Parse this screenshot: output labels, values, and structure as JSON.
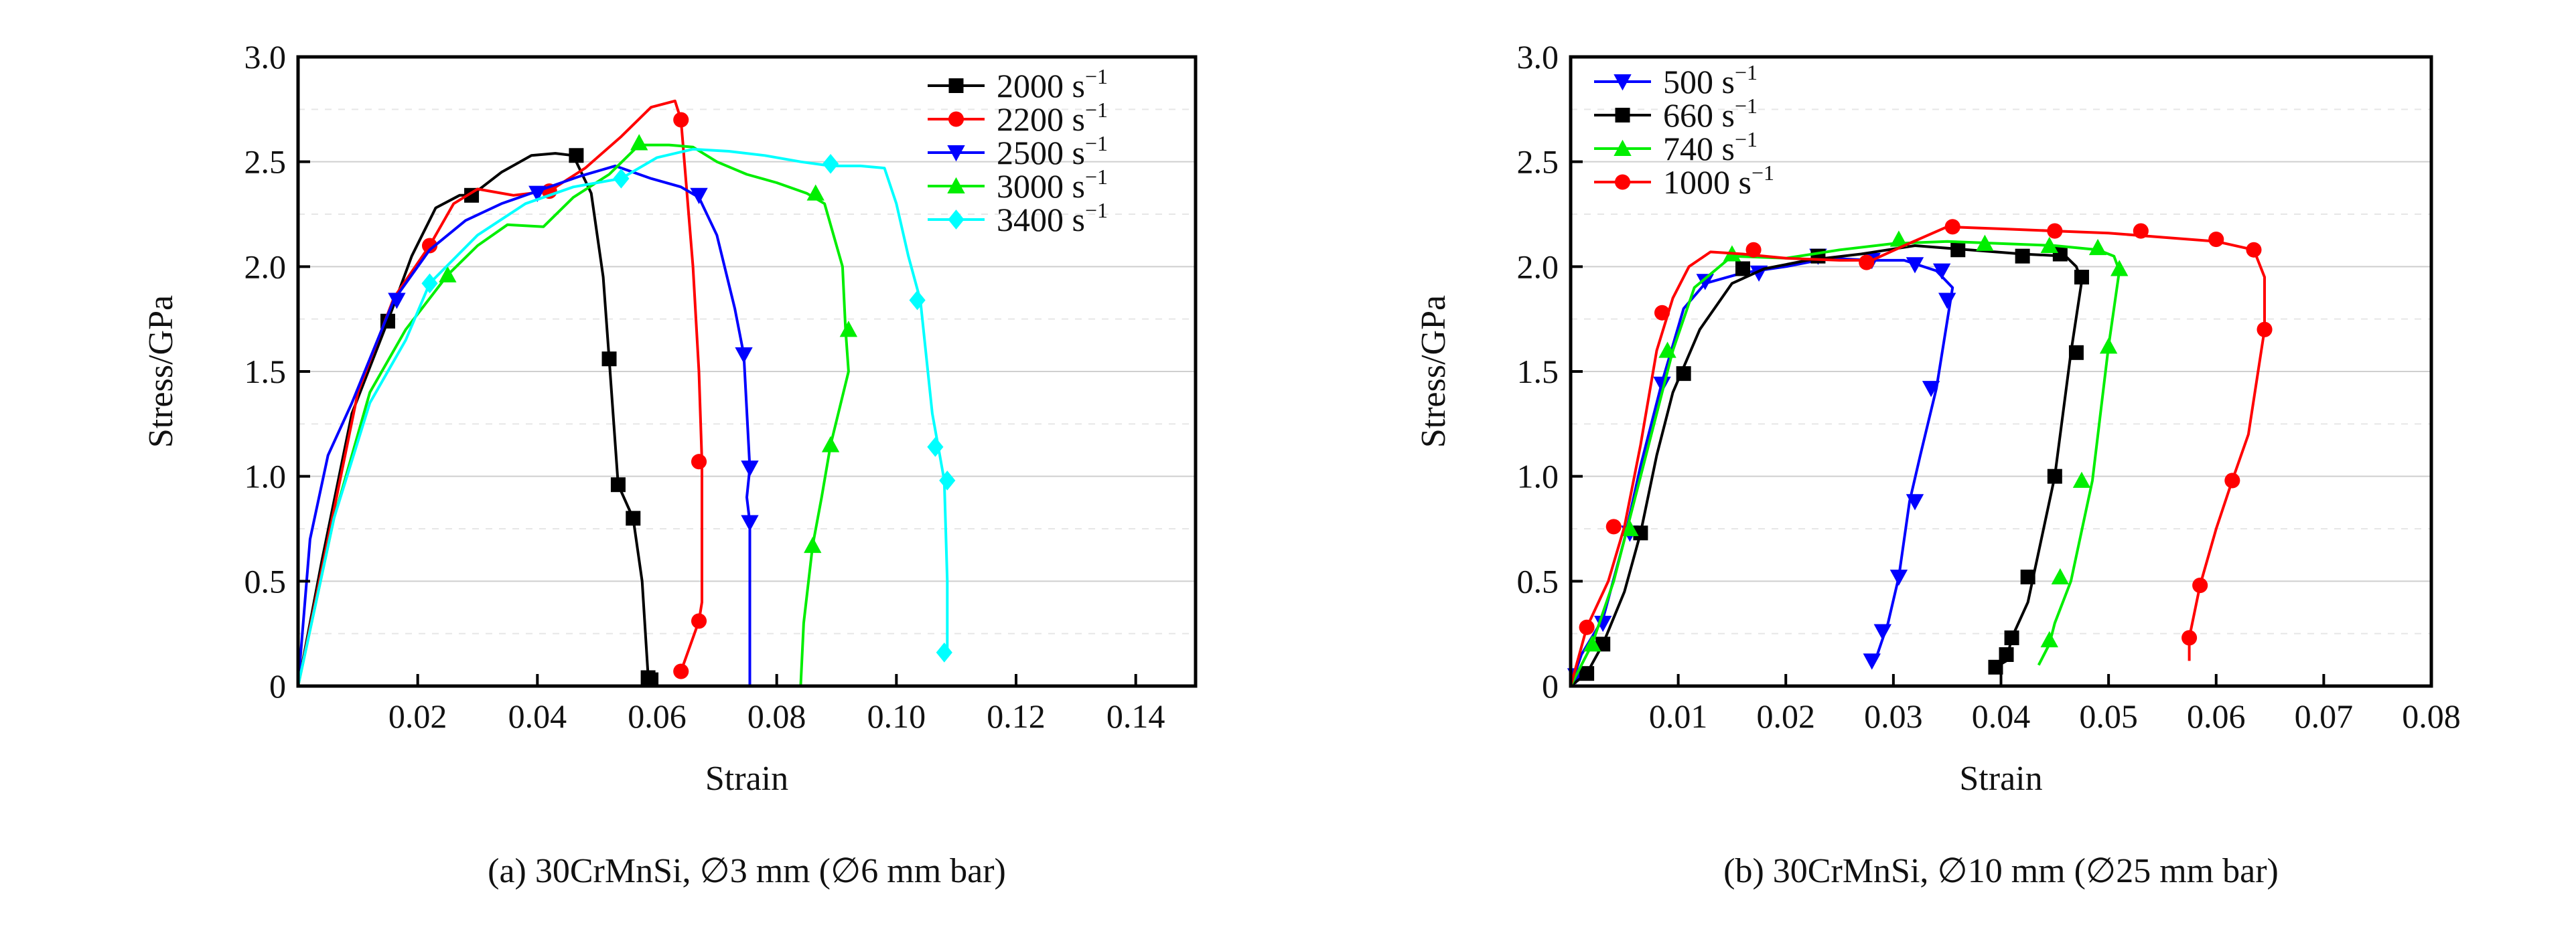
{
  "chart_data": [
    {
      "type": "line",
      "caption": "(a) 30CrMnSi, ∅3 mm (∅6 mm bar)",
      "xlabel": "Strain",
      "ylabel": "Stress/GPa",
      "xlim": [
        0,
        0.15
      ],
      "ylim": [
        0,
        3.0
      ],
      "xticks": [
        0.02,
        0.04,
        0.06,
        0.08,
        0.1,
        0.12,
        0.14
      ],
      "xtick_labels": [
        "0.02",
        "0.04",
        "0.06",
        "0.08",
        "0.10",
        "0.12",
        "0.14"
      ],
      "yticks": [
        0,
        0.5,
        1.0,
        1.5,
        2.0,
        2.5,
        3.0
      ],
      "ytick_labels": [
        "0",
        "0.5",
        "1.0",
        "1.5",
        "2.0",
        "2.5",
        "3.0"
      ],
      "grid": true,
      "legend_position": "top-right",
      "series": [
        {
          "name": "2000 s",
          "sup": "−1",
          "color": "#000000",
          "marker": "square",
          "x": [
            0,
            0.004,
            0.009,
            0.015,
            0.019,
            0.023,
            0.027,
            0.029,
            0.034,
            0.039,
            0.043,
            0.046,
            0.049,
            0.051,
            0.052,
            0.0535,
            0.056,
            0.0575,
            0.0585,
            0.059
          ],
          "y": [
            0,
            0.6,
            1.3,
            1.74,
            2.05,
            2.28,
            2.34,
            2.34,
            2.45,
            2.53,
            2.54,
            2.53,
            2.35,
            1.95,
            1.56,
            0.96,
            0.8,
            0.5,
            0.05,
            0.03
          ],
          "markers_x": [
            0.015,
            0.029,
            0.0465,
            0.052,
            0.0535,
            0.056,
            0.0585,
            0.059
          ],
          "markers_y": [
            1.74,
            2.34,
            2.53,
            1.56,
            0.96,
            0.8,
            0.04,
            0.03
          ]
        },
        {
          "name": "2200 s",
          "sup": "−1",
          "color": "#ff0000",
          "marker": "circle",
          "x": [
            0,
            0.005,
            0.01,
            0.016,
            0.022,
            0.026,
            0.03,
            0.036,
            0.042,
            0.048,
            0.054,
            0.059,
            0.063,
            0.064,
            0.066,
            0.067,
            0.0675,
            0.0675,
            0.067,
            0.064
          ],
          "y": [
            0,
            0.7,
            1.4,
            1.85,
            2.1,
            2.3,
            2.37,
            2.34,
            2.36,
            2.47,
            2.62,
            2.76,
            2.79,
            2.7,
            2.0,
            1.5,
            1.07,
            0.4,
            0.31,
            0.07
          ],
          "markers_x": [
            0.022,
            0.042,
            0.064,
            0.067,
            0.067,
            0.064
          ],
          "markers_y": [
            2.1,
            2.36,
            2.7,
            1.07,
            0.31,
            0.07
          ]
        },
        {
          "name": "2500 s",
          "sup": "−1",
          "color": "#0000ff",
          "marker": "triangle-down",
          "x": [
            0,
            0.002,
            0.005,
            0.009,
            0.016,
            0.022,
            0.028,
            0.034,
            0.04,
            0.047,
            0.053,
            0.059,
            0.064,
            0.067,
            0.07,
            0.073,
            0.0745,
            0.0755,
            0.075,
            0.0755,
            0.0755
          ],
          "y": [
            0,
            0.7,
            1.1,
            1.35,
            1.84,
            2.08,
            2.22,
            2.3,
            2.36,
            2.43,
            2.48,
            2.42,
            2.38,
            2.33,
            2.15,
            1.8,
            1.58,
            1.04,
            0.9,
            0.78,
            0.0
          ],
          "markers_x": [
            0.0165,
            0.04,
            0.067,
            0.0745,
            0.0755,
            0.0755
          ],
          "markers_y": [
            1.84,
            2.35,
            2.34,
            1.58,
            1.04,
            0.78
          ]
        },
        {
          "name": "3000 s",
          "sup": "−1",
          "color": "#00ee00",
          "marker": "triangle-up",
          "x": [
            0,
            0.006,
            0.012,
            0.018,
            0.025,
            0.03,
            0.035,
            0.041,
            0.046,
            0.052,
            0.057,
            0.062,
            0.066,
            0.07,
            0.075,
            0.08,
            0.085,
            0.088,
            0.091,
            0.0915,
            0.092,
            0.089,
            0.0875,
            0.086,
            0.0845,
            0.084
          ],
          "y": [
            0,
            0.8,
            1.4,
            1.7,
            1.96,
            2.1,
            2.2,
            2.19,
            2.33,
            2.44,
            2.58,
            2.58,
            2.57,
            2.5,
            2.44,
            2.4,
            2.35,
            2.3,
            2.0,
            1.7,
            1.5,
            1.15,
            0.9,
            0.67,
            0.3,
            0.0
          ],
          "markers_x": [
            0.025,
            0.057,
            0.0865,
            0.092,
            0.089,
            0.086
          ],
          "markers_y": [
            1.96,
            2.59,
            2.35,
            1.7,
            1.15,
            0.67
          ]
        },
        {
          "name": "3400 s",
          "sup": "−1",
          "color": "#00ffff",
          "marker": "diamond",
          "x": [
            0,
            0.006,
            0.012,
            0.018,
            0.022,
            0.03,
            0.038,
            0.046,
            0.054,
            0.06,
            0.066,
            0.072,
            0.078,
            0.084,
            0.089,
            0.094,
            0.098,
            0.1,
            0.102,
            0.104,
            0.106,
            0.107,
            0.108,
            0.1085,
            0.1085
          ],
          "y": [
            0,
            0.8,
            1.35,
            1.65,
            1.92,
            2.15,
            2.3,
            2.38,
            2.42,
            2.52,
            2.56,
            2.55,
            2.53,
            2.5,
            2.48,
            2.48,
            2.47,
            2.3,
            2.05,
            1.84,
            1.3,
            1.14,
            0.98,
            0.5,
            0.17
          ],
          "markers_x": [
            0.022,
            0.054,
            0.089,
            0.1035,
            0.1065,
            0.1085,
            0.108
          ],
          "markers_y": [
            1.92,
            2.42,
            2.49,
            1.84,
            1.14,
            0.98,
            0.16
          ]
        }
      ]
    },
    {
      "type": "line",
      "caption": "(b) 30CrMnSi, ∅10 mm (∅25 mm bar)",
      "xlabel": "Strain",
      "ylabel": "Stress/GPa",
      "xlim": [
        0,
        0.08
      ],
      "ylim": [
        0,
        3.0
      ],
      "xticks": [
        0.01,
        0.02,
        0.03,
        0.04,
        0.05,
        0.06,
        0.07,
        0.08
      ],
      "xtick_labels": [
        "0.01",
        "0.02",
        "0.03",
        "0.04",
        "0.05",
        "0.06",
        "0.07",
        "0.08"
      ],
      "yticks": [
        0,
        0.5,
        1.0,
        1.5,
        2.0,
        2.5,
        3.0
      ],
      "ytick_labels": [
        "0",
        "0.5",
        "1.0",
        "1.5",
        "2.0",
        "2.5",
        "3.0"
      ],
      "grid": true,
      "legend_position": "top-left",
      "series": [
        {
          "name": "500 s",
          "sup": "−1",
          "color": "#0000ff",
          "marker": "triangle-down",
          "x": [
            0,
            0.001,
            0.003,
            0.005,
            0.0065,
            0.0085,
            0.0105,
            0.0125,
            0.016,
            0.02,
            0.024,
            0.028,
            0.031,
            0.034,
            0.0355,
            0.034,
            0.0325,
            0.0315,
            0.0305,
            0.0295,
            0.0285,
            0.028
          ],
          "y": [
            0,
            0.15,
            0.32,
            0.7,
            1.05,
            1.45,
            1.8,
            1.92,
            1.97,
            2.0,
            2.04,
            2.03,
            2.03,
            1.98,
            1.9,
            1.42,
            1.1,
            0.88,
            0.52,
            0.3,
            0.15,
            0.12
          ],
          "markers_x": [
            0.0005,
            0.003,
            0.0055,
            0.0085,
            0.0125,
            0.0175,
            0.023,
            0.028,
            0.032,
            0.0345,
            0.035,
            0.0335,
            0.032,
            0.0305,
            0.029,
            0.028
          ],
          "markers_y": [
            0.05,
            0.3,
            0.73,
            1.44,
            1.93,
            1.97,
            2.05,
            2.03,
            2.01,
            1.98,
            1.84,
            1.42,
            0.88,
            0.52,
            0.26,
            0.12
          ]
        },
        {
          "name": "660 s",
          "sup": "−1",
          "color": "#000000",
          "marker": "square",
          "x": [
            0,
            0.0015,
            0.003,
            0.005,
            0.0065,
            0.008,
            0.0095,
            0.012,
            0.015,
            0.018,
            0.022,
            0.027,
            0.032,
            0.037,
            0.042,
            0.046,
            0.047,
            0.0475,
            0.0465,
            0.045,
            0.043,
            0.0425,
            0.041,
            0.0405,
            0.0395
          ],
          "y": [
            0,
            0.06,
            0.2,
            0.45,
            0.73,
            1.1,
            1.4,
            1.7,
            1.92,
            1.99,
            2.03,
            2.06,
            2.1,
            2.08,
            2.06,
            2.05,
            2.0,
            1.93,
            1.59,
            1.0,
            0.52,
            0.4,
            0.23,
            0.12,
            0.09
          ],
          "markers_x": [
            0.0015,
            0.003,
            0.0065,
            0.0105,
            0.016,
            0.023,
            0.036,
            0.042,
            0.0455,
            0.0475,
            0.047,
            0.045,
            0.0425,
            0.041,
            0.0405,
            0.0395
          ],
          "markers_y": [
            0.06,
            0.2,
            0.73,
            1.49,
            1.99,
            2.05,
            2.08,
            2.05,
            2.06,
            1.95,
            1.59,
            1.0,
            0.52,
            0.23,
            0.15,
            0.09
          ]
        },
        {
          "name": "740 s",
          "sup": "−1",
          "color": "#00ee00",
          "marker": "triangle-up",
          "x": [
            0,
            0.002,
            0.004,
            0.006,
            0.008,
            0.0095,
            0.0115,
            0.015,
            0.02,
            0.025,
            0.03,
            0.035,
            0.04,
            0.045,
            0.049,
            0.0505,
            0.051,
            0.05,
            0.0485,
            0.0465,
            0.045,
            0.0445,
            0.0435
          ],
          "y": [
            0,
            0.2,
            0.5,
            0.9,
            1.3,
            1.6,
            1.9,
            2.05,
            2.04,
            2.08,
            2.11,
            2.12,
            2.11,
            2.1,
            2.08,
            2.05,
            1.98,
            1.62,
            0.98,
            0.5,
            0.3,
            0.2,
            0.1
          ],
          "markers_x": [
            0.002,
            0.0055,
            0.009,
            0.015,
            0.0305,
            0.0385,
            0.0445,
            0.049,
            0.051,
            0.05,
            0.0475,
            0.0455,
            0.0445
          ],
          "markers_y": [
            0.2,
            0.75,
            1.6,
            2.06,
            2.13,
            2.11,
            2.1,
            2.09,
            1.99,
            1.62,
            0.98,
            0.52,
            0.22
          ]
        },
        {
          "name": "1000 s",
          "sup": "−1",
          "color": "#ff0000",
          "marker": "circle",
          "x": [
            0,
            0.0015,
            0.0035,
            0.005,
            0.0065,
            0.008,
            0.0095,
            0.011,
            0.013,
            0.016,
            0.02,
            0.025,
            0.028,
            0.031,
            0.035,
            0.04,
            0.045,
            0.05,
            0.055,
            0.06,
            0.0635,
            0.0645,
            0.0645,
            0.063,
            0.0615,
            0.06,
            0.0585,
            0.0575,
            0.0575
          ],
          "y": [
            0,
            0.28,
            0.5,
            0.76,
            1.15,
            1.6,
            1.85,
            2.0,
            2.07,
            2.06,
            2.04,
            2.03,
            2.03,
            2.1,
            2.19,
            2.18,
            2.17,
            2.16,
            2.14,
            2.12,
            2.08,
            1.95,
            1.7,
            1.2,
            0.98,
            0.75,
            0.48,
            0.23,
            0.12
          ],
          "markers_x": [
            0.0015,
            0.004,
            0.0085,
            0.017,
            0.0275,
            0.0355,
            0.045,
            0.053,
            0.06,
            0.0635,
            0.0645,
            0.0615,
            0.0585,
            0.0575
          ],
          "markers_y": [
            0.28,
            0.76,
            1.78,
            2.08,
            2.02,
            2.19,
            2.17,
            2.17,
            2.13,
            2.08,
            1.7,
            0.98,
            0.48,
            0.23
          ]
        }
      ]
    }
  ]
}
